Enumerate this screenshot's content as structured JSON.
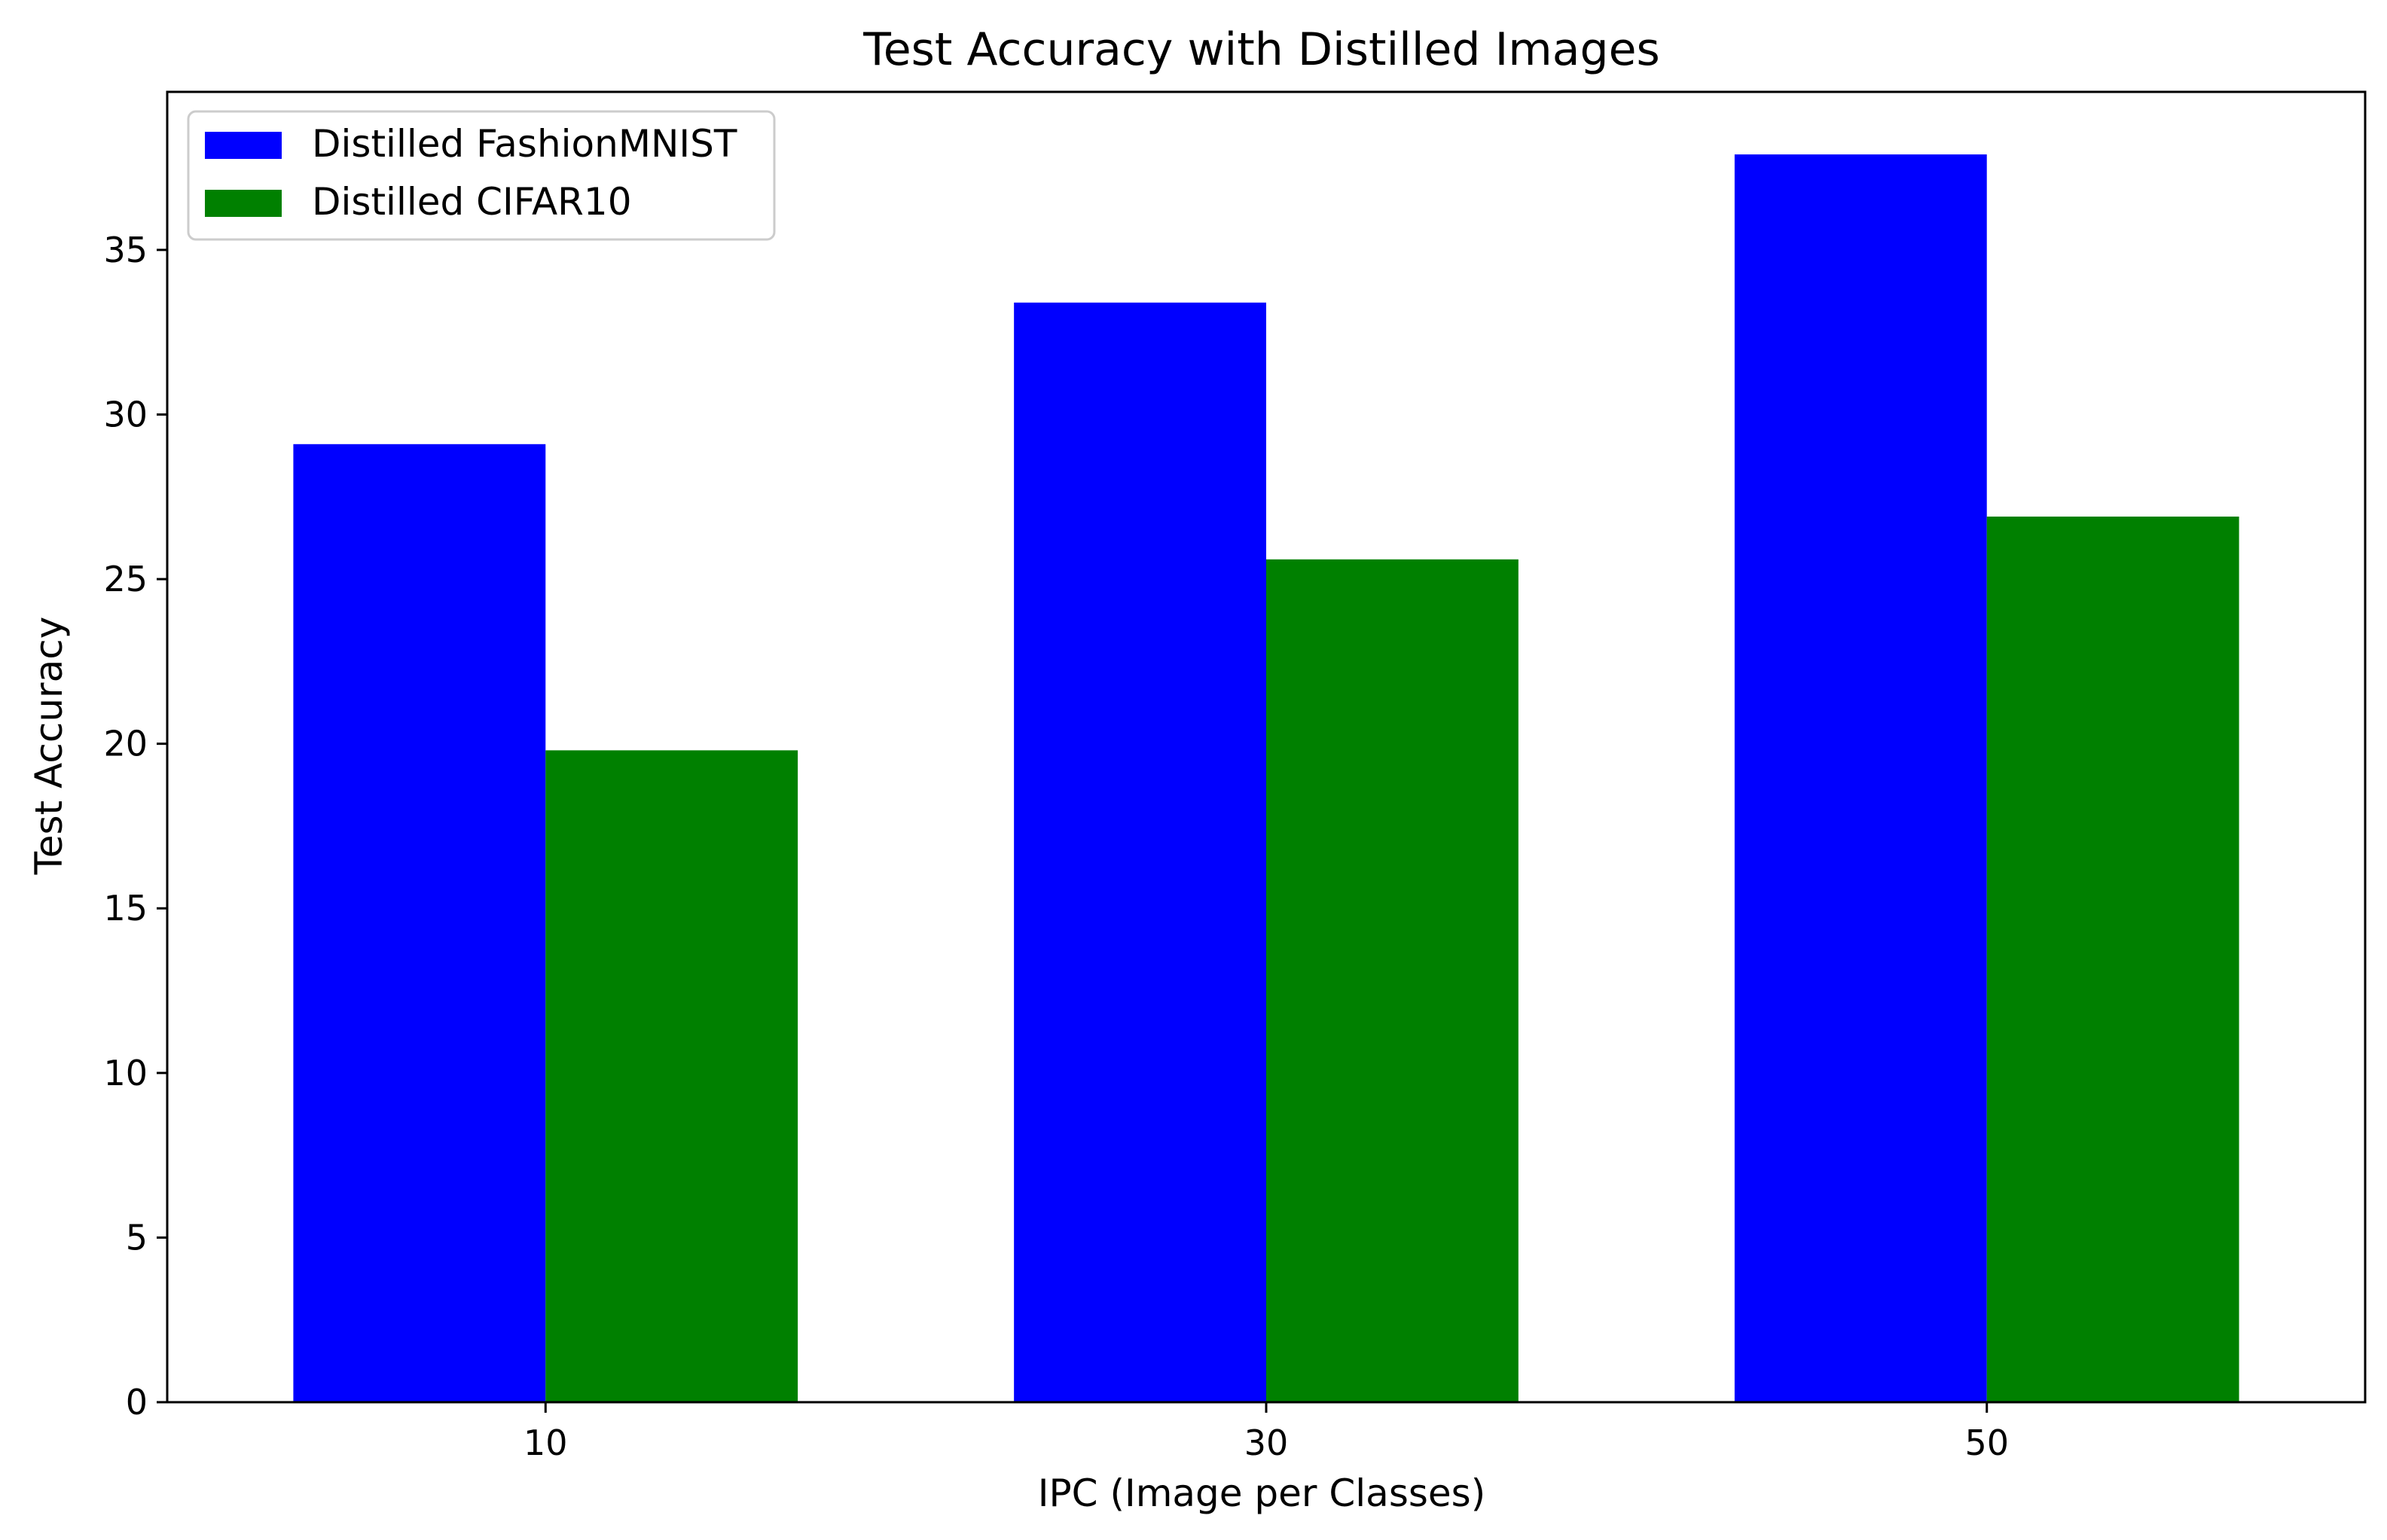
{
  "chart_data": {
    "type": "bar",
    "title": "Test Accuracy with Distilled Images",
    "xlabel": "IPC (Image per Classes)",
    "ylabel": "Test Accuracy",
    "categories": [
      "10",
      "30",
      "50"
    ],
    "series": [
      {
        "name": "Distilled FashionMNIST",
        "color": "#0000ff",
        "values": [
          29.1,
          33.4,
          37.9
        ]
      },
      {
        "name": "Distilled CIFAR10",
        "color": "#008000",
        "values": [
          19.8,
          25.6,
          26.9
        ]
      }
    ],
    "ylim": [
      0,
      39.8
    ],
    "yticks": [
      0,
      5,
      10,
      15,
      20,
      25,
      30,
      35
    ],
    "grid": false,
    "legend_position": "top-left"
  }
}
